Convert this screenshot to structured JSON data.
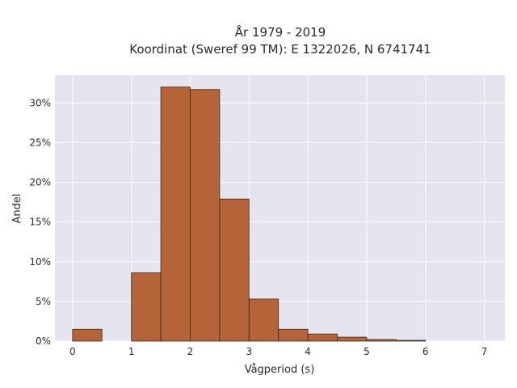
{
  "chart_data": {
    "type": "bar",
    "title_line1": "År 1979 - 2019",
    "title_line2": "Koordinat (Sweref 99 TM): E 1322026, N 6741741",
    "xlabel": "Vågperiod (s)",
    "ylabel": "Andel",
    "xlim": [
      -0.3,
      7.35
    ],
    "ylim": [
      0,
      33.5
    ],
    "x_ticks": [
      0,
      1,
      2,
      3,
      4,
      5,
      6,
      7
    ],
    "x_tick_labels": [
      "0",
      "1",
      "2",
      "3",
      "4",
      "5",
      "6",
      "7"
    ],
    "y_ticks": [
      0,
      5,
      10,
      15,
      20,
      25,
      30
    ],
    "y_tick_labels": [
      "0%",
      "5%",
      "10%",
      "15%",
      "20%",
      "25%",
      "30%"
    ],
    "bin_width": 0.5,
    "bins": [
      {
        "start": 0.0,
        "value": 1.5
      },
      {
        "start": 0.5,
        "value": 0.0
      },
      {
        "start": 1.0,
        "value": 8.6
      },
      {
        "start": 1.5,
        "value": 32.0
      },
      {
        "start": 2.0,
        "value": 31.7
      },
      {
        "start": 2.5,
        "value": 17.9
      },
      {
        "start": 3.0,
        "value": 5.3
      },
      {
        "start": 3.5,
        "value": 1.5
      },
      {
        "start": 4.0,
        "value": 0.9
      },
      {
        "start": 4.5,
        "value": 0.5
      },
      {
        "start": 5.0,
        "value": 0.2
      },
      {
        "start": 5.5,
        "value": 0.1
      }
    ],
    "bar_color": "#b5643a",
    "bar_edge_color": "#3a2a20",
    "plot_background": "#e5e5f0",
    "grid": true,
    "grid_color": "#ffffff"
  }
}
